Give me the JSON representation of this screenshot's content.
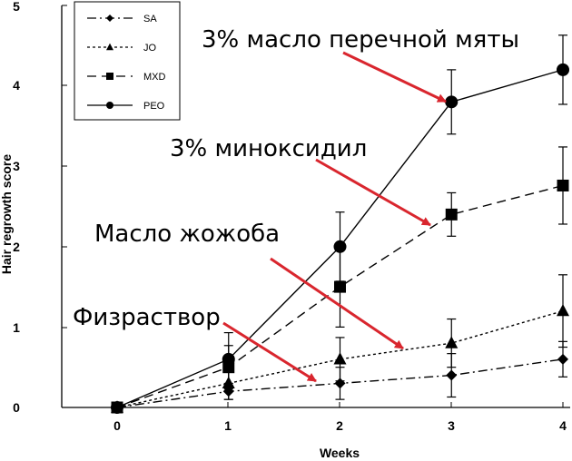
{
  "chart_data": {
    "type": "line",
    "title": "",
    "xlabel": "Weeks",
    "ylabel": "Hair regrowth score",
    "x": [
      0,
      1,
      2,
      3,
      4
    ],
    "xlim": [
      -0.55,
      4.1
    ],
    "ylim": [
      0,
      5
    ],
    "xticks": [
      "0",
      "1",
      "2",
      "3",
      "4"
    ],
    "yticks": [
      "0",
      "1",
      "2",
      "3",
      "4",
      "5"
    ],
    "grid": false,
    "legend_position": "top-left",
    "series": [
      {
        "name": "SA",
        "marker": "diamond",
        "dash": "dashdot",
        "values": [
          0,
          0.2,
          0.3,
          0.4,
          0.6
        ],
        "errors": [
          0,
          0.1,
          0.2,
          0.27,
          0.22
        ]
      },
      {
        "name": "JO",
        "marker": "triangle",
        "dash": "dotted",
        "values": [
          0,
          0.3,
          0.6,
          0.8,
          1.2
        ],
        "errors": [
          0,
          0.2,
          0.27,
          0.3,
          0.45
        ]
      },
      {
        "name": "MXD",
        "marker": "square",
        "dash": "dashed",
        "values": [
          0,
          0.5,
          1.5,
          2.4,
          2.76
        ],
        "errors": [
          0,
          0.27,
          0.5,
          0.27,
          0.48
        ]
      },
      {
        "name": "PEO",
        "marker": "circle",
        "dash": "solid",
        "values": [
          0,
          0.6,
          2.0,
          3.8,
          4.2
        ],
        "errors": [
          0,
          0.33,
          0.43,
          0.4,
          0.43
        ]
      }
    ],
    "annotations": [
      {
        "text": "3% масло перечной мяты",
        "points_to": {
          "series": "PEO",
          "x": 3
        }
      },
      {
        "text": "3% миноксидил",
        "points_to": {
          "series": "MXD",
          "x": 3
        }
      },
      {
        "text": "Масло жожоба",
        "points_to": {
          "series": "JO",
          "x": 2.5
        }
      },
      {
        "text": "Физраствор",
        "points_to": {
          "series": "SA",
          "x": 1.8
        }
      }
    ],
    "colors": {
      "line": "#000000",
      "arrow": "#d9262e"
    }
  }
}
